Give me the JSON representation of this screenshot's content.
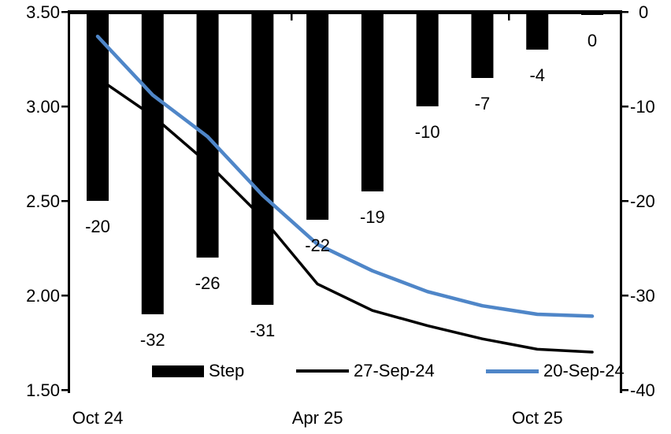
{
  "chart_data": {
    "type": "bar+line",
    "title": "",
    "bar_series": {
      "name": "Step",
      "axis": "right",
      "color": "#000000",
      "values": [
        -20,
        -32,
        -26,
        -31,
        -22,
        -19,
        -10,
        -7,
        -4,
        0
      ],
      "data_labels": [
        "-20",
        "-32",
        "-26",
        "-31",
        "-22",
        "-19",
        "-10",
        "-7",
        "-4",
        "0"
      ]
    },
    "line_series": [
      {
        "name": "27-Sep-24",
        "axis": "left",
        "color": "#000000",
        "values": [
          3.15,
          2.95,
          2.7,
          2.41,
          2.06,
          1.92,
          1.84,
          1.77,
          1.715,
          1.7
        ]
      },
      {
        "name": "20-Sep-24",
        "axis": "left",
        "color": "#4f86c8",
        "values": [
          3.37,
          3.06,
          2.84,
          2.53,
          2.27,
          2.13,
          2.02,
          1.945,
          1.9,
          1.89
        ]
      }
    ],
    "x_axis": {
      "tick_labels": [
        {
          "label": "Oct 24",
          "point_index": 0
        },
        {
          "label": "Apr 25",
          "point_index": 4
        },
        {
          "label": "Oct 25",
          "point_index": 8
        }
      ]
    },
    "left_axis": {
      "range": [
        1.5,
        3.5
      ],
      "tick_labels": [
        "3.50",
        "3.00",
        "2.50",
        "2.00",
        "1.50"
      ]
    },
    "right_axis": {
      "range": [
        -40,
        0
      ],
      "tick_labels": [
        "0",
        "-10",
        "-20",
        "-30",
        "-40"
      ]
    },
    "legend": {
      "position": "bottom",
      "items": [
        {
          "label": "Step",
          "type": "bar",
          "color": "#000000"
        },
        {
          "label": "27-Sep-24",
          "type": "line",
          "color": "#000000"
        },
        {
          "label": "20-Sep-24",
          "type": "line",
          "color": "#4f86c8"
        }
      ]
    },
    "grid": false
  }
}
